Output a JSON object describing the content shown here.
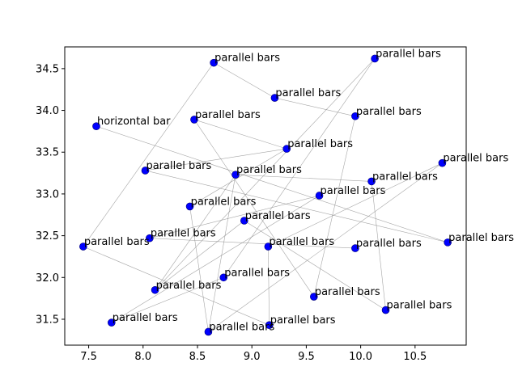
{
  "chart_data": {
    "type": "scatter",
    "title": "",
    "xlabel": "",
    "ylabel": "",
    "xlim": [
      7.28,
      10.97
    ],
    "ylim": [
      31.19,
      34.76
    ],
    "xticks": [
      7.5,
      8.0,
      8.5,
      9.0,
      9.5,
      10.0,
      10.5
    ],
    "xtick_labels": [
      "7.5",
      "8.0",
      "8.5",
      "9.0",
      "9.5",
      "10.0",
      "10.5"
    ],
    "yticks": [
      31.5,
      32.0,
      32.5,
      33.0,
      33.5,
      34.0,
      34.5
    ],
    "ytick_labels": [
      "31.5",
      "32.0",
      "32.5",
      "33.0",
      "33.5",
      "34.0",
      "34.5"
    ],
    "grid": false,
    "marker_color": "#0000ff",
    "edge_color": "#888888",
    "points": [
      {
        "x": 8.65,
        "y": 34.57,
        "label": "parallel bars"
      },
      {
        "x": 10.13,
        "y": 34.62,
        "label": "parallel bars"
      },
      {
        "x": 9.21,
        "y": 34.15,
        "label": "parallel bars"
      },
      {
        "x": 9.95,
        "y": 33.93,
        "label": "parallel bars"
      },
      {
        "x": 7.57,
        "y": 33.81,
        "label": "horizontal bar"
      },
      {
        "x": 8.47,
        "y": 33.89,
        "label": "parallel bars"
      },
      {
        "x": 9.32,
        "y": 33.54,
        "label": "parallel bars"
      },
      {
        "x": 10.75,
        "y": 33.37,
        "label": "parallel bars"
      },
      {
        "x": 8.02,
        "y": 33.28,
        "label": "parallel bars"
      },
      {
        "x": 8.85,
        "y": 33.23,
        "label": "parallel bars"
      },
      {
        "x": 10.1,
        "y": 33.15,
        "label": "parallel bars"
      },
      {
        "x": 9.62,
        "y": 32.98,
        "label": "parallel bars"
      },
      {
        "x": 8.43,
        "y": 32.85,
        "label": "parallel bars"
      },
      {
        "x": 8.93,
        "y": 32.68,
        "label": "parallel bars"
      },
      {
        "x": 10.8,
        "y": 32.42,
        "label": "parallel bars"
      },
      {
        "x": 8.06,
        "y": 32.47,
        "label": "parallel bars"
      },
      {
        "x": 7.45,
        "y": 32.37,
        "label": "parallel bars"
      },
      {
        "x": 9.15,
        "y": 32.37,
        "label": "parallel bars"
      },
      {
        "x": 9.95,
        "y": 32.35,
        "label": "parallel bars"
      },
      {
        "x": 8.74,
        "y": 32.0,
        "label": "parallel bars"
      },
      {
        "x": 8.11,
        "y": 31.85,
        "label": "parallel bars"
      },
      {
        "x": 9.57,
        "y": 31.77,
        "label": "parallel bars"
      },
      {
        "x": 10.23,
        "y": 31.61,
        "label": "parallel bars"
      },
      {
        "x": 7.71,
        "y": 31.46,
        "label": "parallel bars"
      },
      {
        "x": 9.16,
        "y": 31.43,
        "label": "parallel bars"
      },
      {
        "x": 8.6,
        "y": 31.35,
        "label": "parallel bars"
      }
    ],
    "edges": [
      [
        0,
        2
      ],
      [
        2,
        3
      ],
      [
        0,
        16
      ],
      [
        1,
        20
      ],
      [
        1,
        19
      ],
      [
        3,
        21
      ],
      [
        4,
        14
      ],
      [
        5,
        6
      ],
      [
        5,
        21
      ],
      [
        6,
        8
      ],
      [
        8,
        14
      ],
      [
        9,
        10
      ],
      [
        9,
        25
      ],
      [
        10,
        22
      ],
      [
        11,
        23
      ],
      [
        12,
        25
      ],
      [
        13,
        20
      ],
      [
        13,
        22
      ],
      [
        15,
        18
      ],
      [
        16,
        24
      ],
      [
        17,
        24
      ],
      [
        7,
        17
      ],
      [
        7,
        25
      ],
      [
        19,
        23
      ],
      [
        11,
        15
      ],
      [
        9,
        20
      ],
      [
        12,
        6
      ]
    ]
  }
}
